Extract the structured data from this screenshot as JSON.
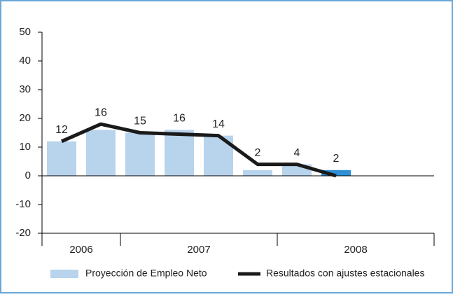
{
  "chart_data": {
    "type": "bar",
    "categories": [
      null,
      null,
      null,
      null,
      null,
      null,
      null,
      null,
      null,
      null
    ],
    "groups": [
      {
        "label": "2006",
        "start": 0,
        "end": 2
      },
      {
        "label": "2007",
        "start": 2,
        "end": 6
      },
      {
        "label": "2008",
        "start": 6,
        "end": 10
      }
    ],
    "series": [
      {
        "name": "Proyección de Empleo Neto",
        "type": "bar",
        "color": "#b8d3ec",
        "values": [
          12,
          16,
          15,
          16,
          14,
          2,
          4,
          2,
          null,
          null
        ],
        "highlight": {
          "index": 7,
          "color": "#2e8fd6"
        }
      },
      {
        "name": "Resultados con ajustes estacionales",
        "type": "line",
        "color": "#1a1a1a",
        "values": [
          12,
          18,
          15,
          14.5,
          14,
          4,
          4,
          0,
          null,
          null
        ]
      }
    ],
    "ylim": [
      -20,
      50
    ],
    "yticks": [
      -20,
      -10,
      0,
      10,
      20,
      30,
      40,
      50
    ]
  }
}
